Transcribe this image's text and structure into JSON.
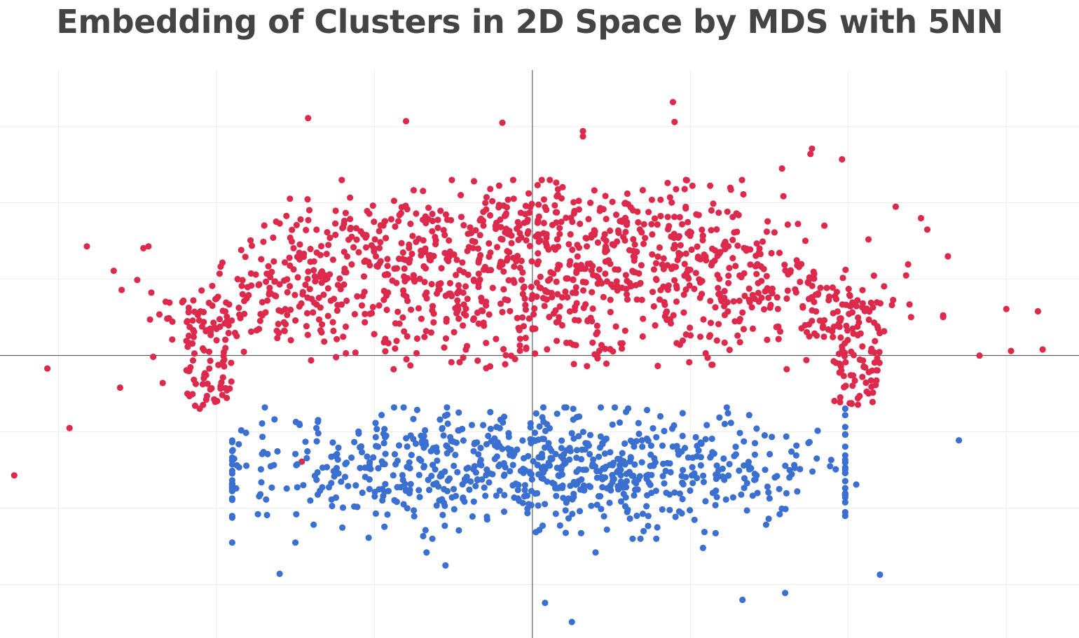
{
  "chart_data": {
    "type": "scatter",
    "title": "Embedding of Clusters in 2D Space by MDS with 5NN",
    "xlabel": "",
    "ylabel": "",
    "xlim": [
      -3.37,
      3.46
    ],
    "ylim": [
      -3.7,
      3.74
    ],
    "grid": true,
    "show_tick_labels": false,
    "zero_lines": true,
    "series": [
      {
        "color": "#dc2a4d",
        "generator": {
          "shape": "upper-arc-cluster",
          "count": 1400,
          "seed": 7
        },
        "values": [
          [
            -3.28,
            -1.57
          ],
          [
            -2.93,
            -0.95
          ],
          [
            -3.07,
            -0.17
          ],
          [
            -2.82,
            1.43
          ],
          [
            -2.65,
            1.11
          ],
          [
            -2.43,
            1.43
          ],
          [
            -2.61,
            -0.42
          ],
          [
            -1.42,
            3.11
          ],
          [
            -0.8,
            3.07
          ],
          [
            -0.19,
            3.05
          ],
          [
            0.32,
            2.94
          ],
          [
            0.9,
            3.06
          ],
          [
            0.89,
            3.32
          ],
          [
            0.32,
            2.87
          ],
          [
            1.77,
            2.71
          ],
          [
            1.58,
            2.45
          ],
          [
            2.3,
            1.95
          ],
          [
            2.46,
            1.8
          ],
          [
            3.0,
            0.61
          ],
          [
            3.2,
            0.58
          ],
          [
            3.03,
            0.06
          ],
          [
            3.23,
            0.08
          ],
          [
            2.83,
            0.0
          ],
          [
            2.63,
            1.3
          ],
          [
            1.96,
            2.57
          ],
          [
            1.76,
            2.64
          ],
          [
            2.5,
            1.65
          ],
          [
            -1.46,
            -1.39
          ],
          [
            -2.28,
            0.21
          ],
          [
            -2.34,
            -0.36
          ]
        ]
      },
      {
        "color": "#3b6fd0",
        "generator": {
          "shape": "lower-band-cluster",
          "count": 800,
          "seed": 11
        },
        "values": [
          [
            -1.9,
            -2.45
          ],
          [
            -1.6,
            -2.86
          ],
          [
            -1.5,
            -2.45
          ],
          [
            -0.67,
            -2.58
          ],
          [
            -0.55,
            -2.75
          ],
          [
            0.08,
            -3.24
          ],
          [
            0.25,
            -3.49
          ],
          [
            0.4,
            -2.58
          ],
          [
            1.08,
            -2.52
          ],
          [
            1.33,
            -3.2
          ],
          [
            1.6,
            -3.11
          ],
          [
            2.2,
            -2.87
          ],
          [
            2.7,
            -1.11
          ],
          [
            2.05,
            -1.69
          ],
          [
            1.92,
            -1.49
          ],
          [
            1.8,
            -1.35
          ],
          [
            -1.68,
            -2.09
          ],
          [
            -1.5,
            -1.29
          ],
          [
            -1.36,
            -1.53
          ],
          [
            0.95,
            -1.88
          ]
        ]
      }
    ]
  }
}
